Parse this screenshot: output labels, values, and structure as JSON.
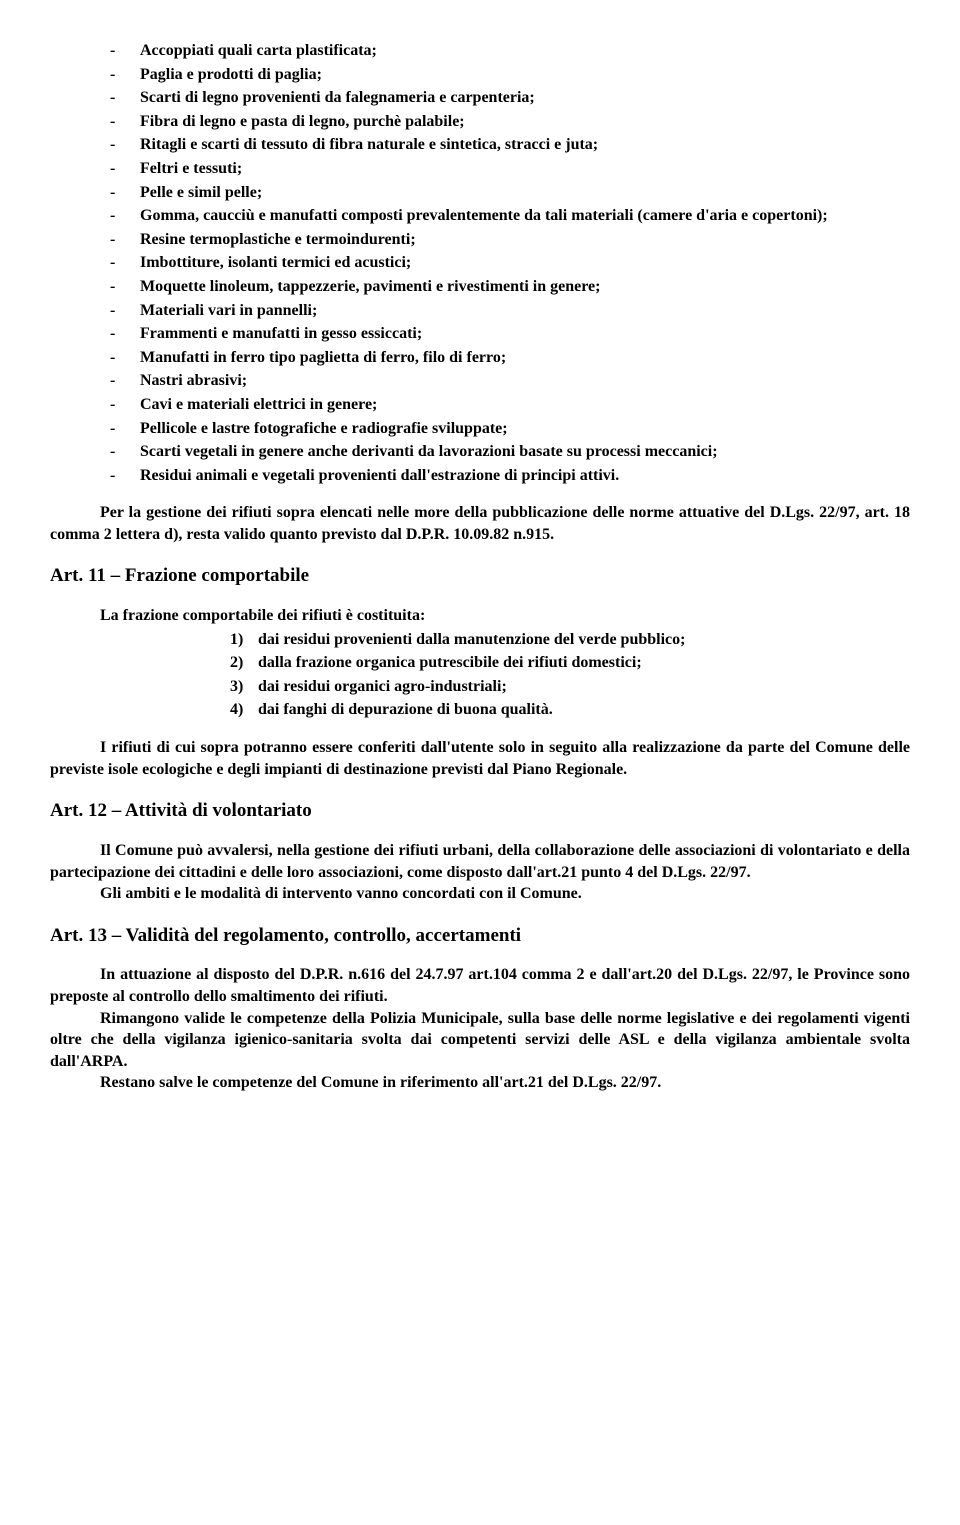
{
  "bulletsA": [
    "Accoppiati quali carta plastificata;",
    "Paglia e prodotti di paglia;",
    "Scarti di legno provenienti da falegnameria e carpenteria;",
    "Fibra di legno e pasta di legno, purchè palabile;",
    "Ritagli e scarti di tessuto di fibra naturale e sintetica, stracci e juta;",
    "Feltri e tessuti;",
    "Pelle e simil pelle;",
    "Gomma, caucciù e manufatti composti prevalentemente da tali materiali (camere d'aria e copertoni);",
    "Resine termoplastiche e termoindurenti;",
    "Imbottiture, isolanti termici ed acustici;",
    "Moquette linoleum, tappezzerie, pavimenti e rivestimenti in genere;",
    "Materiali vari in pannelli;",
    "Frammenti e manufatti in gesso essiccati;",
    "Manufatti in ferro tipo paglietta di ferro, filo di ferro;",
    "Nastri abrasivi;",
    "Cavi e materiali elettrici in genere;",
    "Pellicole e lastre fotografiche e radiografie sviluppate;",
    "Scarti vegetali in genere anche derivanti da lavorazioni basate su processi meccanici;",
    "Residui animali e vegetali provenienti dall'estrazione di principi attivi."
  ],
  "p1": "Per la gestione dei rifiuti sopra elencati nelle more della pubblicazione delle norme attuative del D.Lgs. 22/97, art. 18 comma 2 lettera d), resta valido quanto previsto dal D.P.R. 10.09.82 n.915.",
  "h11": "Art. 11 – Frazione comportabile",
  "p2": "La frazione comportabile dei rifiuti è costituita:",
  "numlist": [
    {
      "n": "1)",
      "t": "dai residui provenienti dalla manutenzione del verde pubblico;"
    },
    {
      "n": "2)",
      "t": "dalla frazione organica putrescibile dei rifiuti domestici;"
    },
    {
      "n": "3)",
      "t": "dai residui organici agro-industriali;"
    },
    {
      "n": "4)",
      "t": "dai fanghi di depurazione di buona qualità."
    }
  ],
  "p3": "I rifiuti di cui sopra potranno essere conferiti dall'utente solo in seguito alla realizzazione da parte del Comune delle previste isole ecologiche e degli impianti di destinazione previsti dal Piano Regionale.",
  "h12": "Art. 12 – Attività di volontariato",
  "p4": "Il Comune può avvalersi, nella gestione dei rifiuti urbani, della collaborazione delle associazioni di volontariato e della partecipazione dei cittadini e delle loro associazioni, come disposto dall'art.21 punto 4 del D.Lgs. 22/97.",
  "p5": "Gli ambiti e le modalità di intervento vanno concordati con il Comune.",
  "h13": "Art. 13 – Validità del regolamento, controllo, accertamenti",
  "p6": "In attuazione al disposto del D.P.R. n.616 del 24.7.97 art.104 comma 2 e dall'art.20 del D.Lgs. 22/97, le Province sono preposte al controllo dello smaltimento dei rifiuti.",
  "p7": "Rimangono valide le competenze della Polizia Municipale, sulla base delle norme legislative e dei regolamenti vigenti oltre che della vigilanza igienico-sanitaria svolta dai competenti servizi delle ASL e della vigilanza ambientale svolta dall'ARPA.",
  "p8": "Restano salve le competenze del Comune in riferimento all'art.21 del D.Lgs. 22/97."
}
